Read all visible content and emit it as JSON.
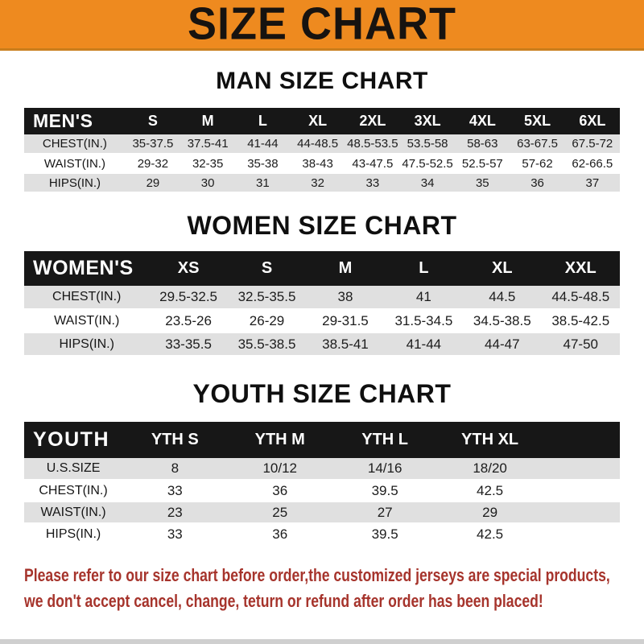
{
  "banner": {
    "title": "SIZE CHART"
  },
  "colors": {
    "banner_bg": "#ee8a1f",
    "header_bar": "#171717",
    "row_alt": "#e0e0e0",
    "disclaimer_red": "#a6342c"
  },
  "tables": {
    "men": {
      "heading": "MAN SIZE CHART",
      "corner_label": "MEN'S",
      "sizes": [
        "S",
        "M",
        "L",
        "XL",
        "2XL",
        "3XL",
        "4XL",
        "5XL",
        "6XL"
      ],
      "rows": [
        {
          "label": "CHEST(IN.)",
          "values": [
            "35-37.5",
            "37.5-41",
            "41-44",
            "44-48.5",
            "48.5-53.5",
            "53.5-58",
            "58-63",
            "63-67.5",
            "67.5-72"
          ]
        },
        {
          "label": "WAIST(IN.)",
          "values": [
            "29-32",
            "32-35",
            "35-38",
            "38-43",
            "43-47.5",
            "47.5-52.5",
            "52.5-57",
            "57-62",
            "62-66.5"
          ]
        },
        {
          "label": "HIPS(IN.)",
          "values": [
            "29",
            "30",
            "31",
            "32",
            "33",
            "34",
            "35",
            "36",
            "37"
          ]
        }
      ]
    },
    "women": {
      "heading": "WOMEN SIZE CHART",
      "corner_label": "WOMEN'S",
      "sizes": [
        "XS",
        "S",
        "M",
        "L",
        "XL",
        "XXL"
      ],
      "rows": [
        {
          "label": "CHEST(IN.)",
          "values": [
            "29.5-32.5",
            "32.5-35.5",
            "38",
            "41",
            "44.5",
            "44.5-48.5"
          ]
        },
        {
          "label": "WAIST(IN.)",
          "values": [
            "23.5-26",
            "26-29",
            "29-31.5",
            "31.5-34.5",
            "34.5-38.5",
            "38.5-42.5"
          ]
        },
        {
          "label": "HIPS(IN.)",
          "values": [
            "33-35.5",
            "35.5-38.5",
            "38.5-41",
            "41-44",
            "44-47",
            "47-50"
          ]
        }
      ]
    },
    "youth": {
      "heading": "YOUTH SIZE CHART",
      "corner_label": "YOUTH",
      "sizes": [
        "YTH S",
        "YTH M",
        "YTH L",
        "YTH XL"
      ],
      "rows": [
        {
          "label": "U.S.SIZE",
          "values": [
            "8",
            "10/12",
            "14/16",
            "18/20"
          ]
        },
        {
          "label": "CHEST(IN.)",
          "values": [
            "33",
            "36",
            "39.5",
            "42.5"
          ]
        },
        {
          "label": "WAIST(IN.)",
          "values": [
            "23",
            "25",
            "27",
            "29"
          ]
        },
        {
          "label": "HIPS(IN.)",
          "values": [
            "33",
            "36",
            "39.5",
            "42.5"
          ]
        }
      ]
    }
  },
  "disclaimer": {
    "line1": "Please refer to our size chart before order,the customized jerseys are special products,",
    "line2": "we don't accept cancel, change, teturn or refund after order has been placed!"
  }
}
